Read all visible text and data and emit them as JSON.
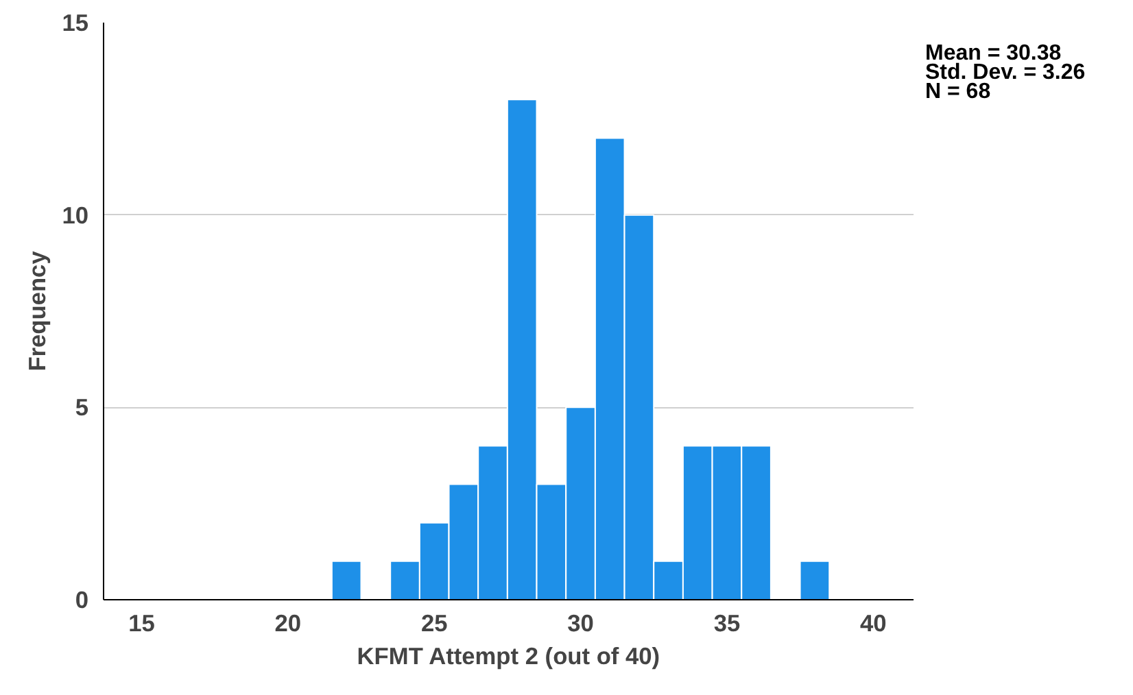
{
  "chart_data": {
    "type": "histogram",
    "xlabel": "KFMT Attempt 2 (out of 40)",
    "ylabel": "Frequency",
    "bins": [
      21.5,
      22.5,
      23.5,
      24.5,
      25.5,
      26.5,
      27.5,
      28.5,
      29.5,
      30.5,
      31.5,
      32.5,
      33.5,
      34.5,
      35.5,
      36.5,
      37.5,
      38.5
    ],
    "values": [
      1,
      0,
      1,
      2,
      3,
      4,
      13,
      3,
      5,
      12,
      10,
      1,
      4,
      4,
      4,
      0,
      1
    ],
    "color": "#1e90e8",
    "xlim": [
      13.7,
      41.4
    ],
    "xticks": [
      15,
      20,
      25,
      30,
      35,
      40
    ],
    "ylim": [
      0,
      15
    ],
    "yticks": [
      0,
      5,
      10,
      15
    ],
    "grid": "y",
    "annotations": [
      "Mean = 30.38",
      "Std. Dev. = 3.26",
      "N = 68"
    ]
  }
}
